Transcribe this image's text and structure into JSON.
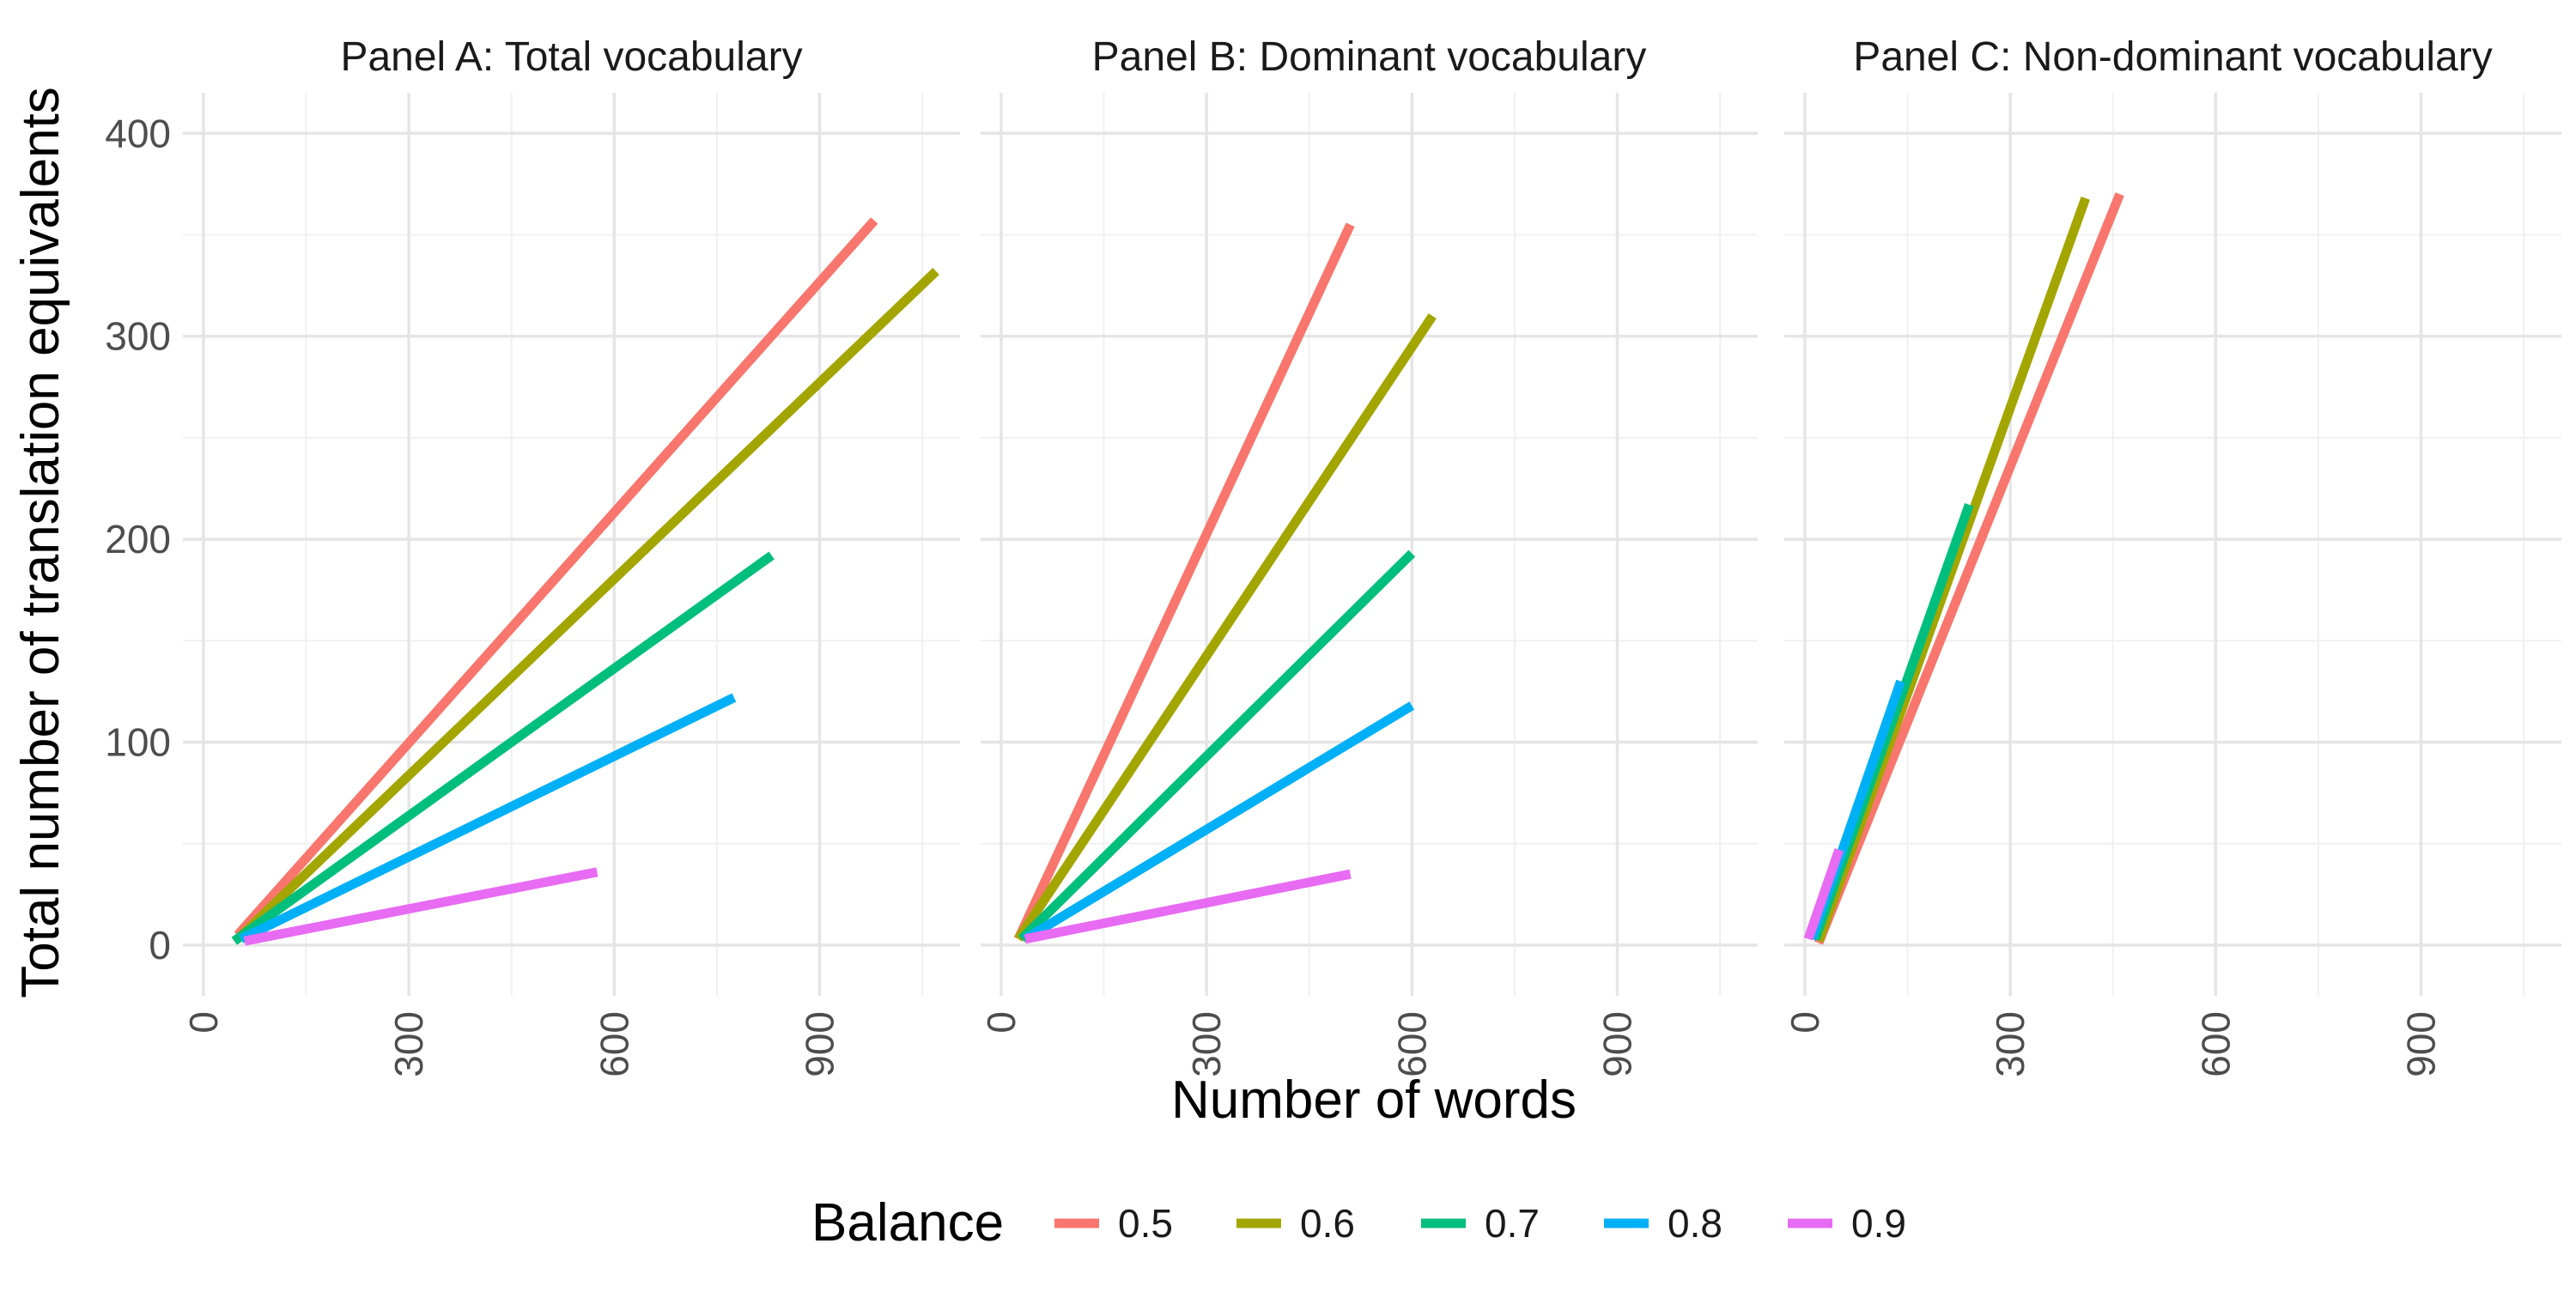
{
  "chart_data": {
    "type": "line",
    "xlabel": "Number of words",
    "ylabel": "Total number of translation equivalents",
    "xlim": [
      -30,
      1105
    ],
    "ylim": [
      -25,
      420
    ],
    "xticks": [
      0,
      300,
      600,
      900
    ],
    "xtick_labels": [
      "0",
      "300",
      "600",
      "900"
    ],
    "yticks": [
      0,
      100,
      200,
      300,
      400
    ],
    "ytick_labels": [
      "0",
      "100",
      "200",
      "300",
      "400"
    ],
    "grid": true,
    "legend": {
      "title": "Balance",
      "position": "bottom",
      "entries": [
        {
          "label": "0.5",
          "color": "#F8766D"
        },
        {
          "label": "0.6",
          "color": "#A3A500"
        },
        {
          "label": "0.7",
          "color": "#00BF7D"
        },
        {
          "label": "0.8",
          "color": "#00B0F6"
        },
        {
          "label": "0.9",
          "color": "#E76BF3"
        }
      ]
    },
    "panels": [
      {
        "title": "Panel A: Total vocabulary",
        "series": [
          {
            "name": "0.5",
            "color": "#F8766D",
            "points": [
              [
                50,
                5
              ],
              [
                980,
                357
              ]
            ]
          },
          {
            "name": "0.6",
            "color": "#A3A500",
            "points": [
              [
                50,
                3
              ],
              [
                1070,
                332
              ]
            ]
          },
          {
            "name": "0.7",
            "color": "#00BF7D",
            "points": [
              [
                45,
                2
              ],
              [
                830,
                192
              ]
            ]
          },
          {
            "name": "0.8",
            "color": "#00B0F6",
            "points": [
              [
                55,
                3
              ],
              [
                775,
                122
              ]
            ]
          },
          {
            "name": "0.9",
            "color": "#E76BF3",
            "points": [
              [
                60,
                2
              ],
              [
                575,
                36
              ]
            ]
          }
        ]
      },
      {
        "title": "Panel B: Dominant vocabulary",
        "series": [
          {
            "name": "0.5",
            "color": "#F8766D",
            "points": [
              [
                25,
                3
              ],
              [
                510,
                355
              ]
            ]
          },
          {
            "name": "0.6",
            "color": "#A3A500",
            "points": [
              [
                25,
                3
              ],
              [
                630,
                310
              ]
            ]
          },
          {
            "name": "0.7",
            "color": "#00BF7D",
            "points": [
              [
                30,
                3
              ],
              [
                600,
                193
              ]
            ]
          },
          {
            "name": "0.8",
            "color": "#00B0F6",
            "points": [
              [
                35,
                3
              ],
              [
                600,
                118
              ]
            ]
          },
          {
            "name": "0.9",
            "color": "#E76BF3",
            "points": [
              [
                35,
                3
              ],
              [
                510,
                35
              ]
            ]
          }
        ]
      },
      {
        "title": "Panel C: Non-dominant vocabulary",
        "series": [
          {
            "name": "0.5",
            "color": "#F8766D",
            "points": [
              [
                20,
                1
              ],
              [
                460,
                370
              ]
            ]
          },
          {
            "name": "0.6",
            "color": "#A3A500",
            "points": [
              [
                20,
                2
              ],
              [
                410,
                368
              ]
            ]
          },
          {
            "name": "0.7",
            "color": "#00BF7D",
            "points": [
              [
                15,
                3
              ],
              [
                240,
                217
              ]
            ]
          },
          {
            "name": "0.8",
            "color": "#00B0F6",
            "points": [
              [
                10,
                3
              ],
              [
                140,
                130
              ]
            ]
          },
          {
            "name": "0.9",
            "color": "#E76BF3",
            "points": [
              [
                5,
                3
              ],
              [
                50,
                47
              ]
            ]
          }
        ]
      }
    ]
  }
}
